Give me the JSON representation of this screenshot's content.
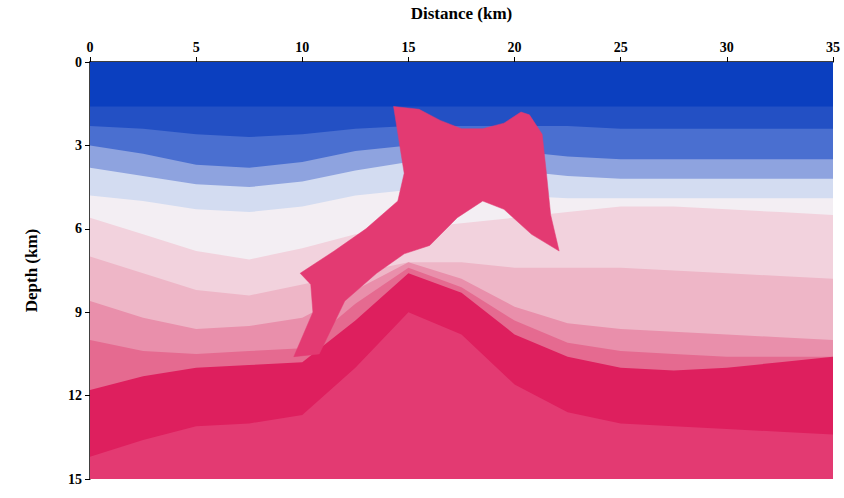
{
  "chart_data": {
    "type": "area",
    "x_label": "Distance (km)",
    "y_label": "Depth (km)",
    "xlim": [
      0,
      35
    ],
    "xticks": [
      0,
      5,
      10,
      15,
      20,
      25,
      30,
      35
    ],
    "ylim": [
      0,
      15
    ],
    "yticks": [
      0,
      3,
      6,
      9,
      12,
      15
    ],
    "grid": false,
    "x": [
      0,
      2.5,
      5,
      7.5,
      10,
      12.5,
      15,
      17.5,
      20,
      22.5,
      25,
      27.5,
      30,
      32.5,
      35
    ],
    "series": [
      {
        "type": "area",
        "color": "#0b3fbf",
        "values": [
          0,
          0,
          0,
          0,
          0,
          0,
          0,
          0,
          0,
          0,
          0,
          0,
          0,
          0,
          0
        ]
      },
      {
        "type": "area",
        "color": "#2350c4",
        "values": [
          1.6,
          1.6,
          1.6,
          1.6,
          1.6,
          1.6,
          1.6,
          1.6,
          1.6,
          1.6,
          1.6,
          1.6,
          1.6,
          1.6,
          1.6
        ]
      },
      {
        "type": "area",
        "color": "#4a6fd0",
        "values": [
          2.3,
          2.4,
          2.6,
          2.7,
          2.6,
          2.4,
          2.3,
          2.3,
          2.3,
          2.3,
          2.4,
          2.4,
          2.4,
          2.4,
          2.4
        ]
      },
      {
        "type": "area",
        "color": "#8ea3df",
        "values": [
          3.0,
          3.3,
          3.7,
          3.8,
          3.6,
          3.2,
          3.0,
          3.0,
          3.2,
          3.4,
          3.5,
          3.5,
          3.5,
          3.5,
          3.5
        ]
      },
      {
        "type": "area",
        "color": "#d3dcf1",
        "values": [
          3.8,
          4.1,
          4.4,
          4.5,
          4.3,
          3.9,
          3.6,
          3.6,
          3.9,
          4.1,
          4.2,
          4.2,
          4.2,
          4.2,
          4.2
        ]
      },
      {
        "type": "area",
        "color": "#f3eef3",
        "values": [
          4.8,
          5.0,
          5.3,
          5.4,
          5.2,
          4.8,
          4.6,
          4.6,
          4.8,
          4.9,
          4.9,
          4.9,
          4.9,
          4.9,
          4.9
        ]
      },
      {
        "type": "area",
        "color": "#f2d2dd",
        "values": [
          5.6,
          6.2,
          6.8,
          7.1,
          6.7,
          6.2,
          6.0,
          5.8,
          5.6,
          5.4,
          5.2,
          5.2,
          5.3,
          5.4,
          5.5
        ]
      },
      {
        "type": "area",
        "color": "#eeb6c7",
        "values": [
          7.0,
          7.6,
          8.2,
          8.4,
          8.0,
          7.6,
          7.2,
          7.2,
          7.4,
          7.4,
          7.4,
          7.5,
          7.6,
          7.7,
          7.8
        ]
      },
      {
        "type": "area",
        "color": "#e98fab",
        "values": [
          8.6,
          9.2,
          9.6,
          9.5,
          9.2,
          8.2,
          7.2,
          7.8,
          8.8,
          9.4,
          9.6,
          9.7,
          9.8,
          9.9,
          10.0
        ]
      },
      {
        "type": "area",
        "color": "#e56a90",
        "values": [
          10.0,
          10.4,
          10.5,
          10.4,
          10.3,
          8.7,
          7.4,
          8.1,
          9.3,
          10.1,
          10.4,
          10.5,
          10.6,
          10.6,
          10.6
        ]
      },
      {
        "type": "area",
        "color": "#de1f5e",
        "values": [
          11.8,
          11.3,
          11.0,
          10.9,
          10.8,
          9.3,
          7.6,
          8.3,
          9.8,
          10.6,
          11.0,
          11.1,
          11.0,
          10.8,
          10.6
        ]
      },
      {
        "type": "area",
        "color": "#e33a72",
        "values": [
          14.2,
          13.6,
          13.1,
          13.0,
          12.7,
          11.0,
          9.0,
          9.8,
          11.6,
          12.6,
          13.0,
          13.1,
          13.2,
          13.3,
          13.4
        ]
      },
      {
        "type": "polygon",
        "color": "#e33a72",
        "x": [
          14.3,
          15.5,
          16.5,
          17.5,
          18.5,
          19.5,
          20.3,
          20.7,
          21.3,
          21.5,
          21.7,
          22.1,
          20.8,
          19.5,
          18.5,
          17.3,
          16.0,
          14.8,
          13.5,
          12.0,
          10.8,
          9.6,
          10.5,
          10.4,
          9.9,
          11.5,
          13.0,
          14.5,
          14.8
        ],
        "values": [
          1.6,
          1.7,
          2.1,
          2.4,
          2.4,
          2.2,
          1.8,
          1.9,
          2.6,
          4.0,
          5.5,
          6.8,
          6.2,
          5.3,
          5.0,
          5.6,
          6.6,
          6.9,
          7.6,
          8.6,
          10.5,
          10.6,
          9.0,
          8.0,
          7.6,
          6.8,
          6.0,
          5.0,
          4.0
        ]
      }
    ]
  }
}
